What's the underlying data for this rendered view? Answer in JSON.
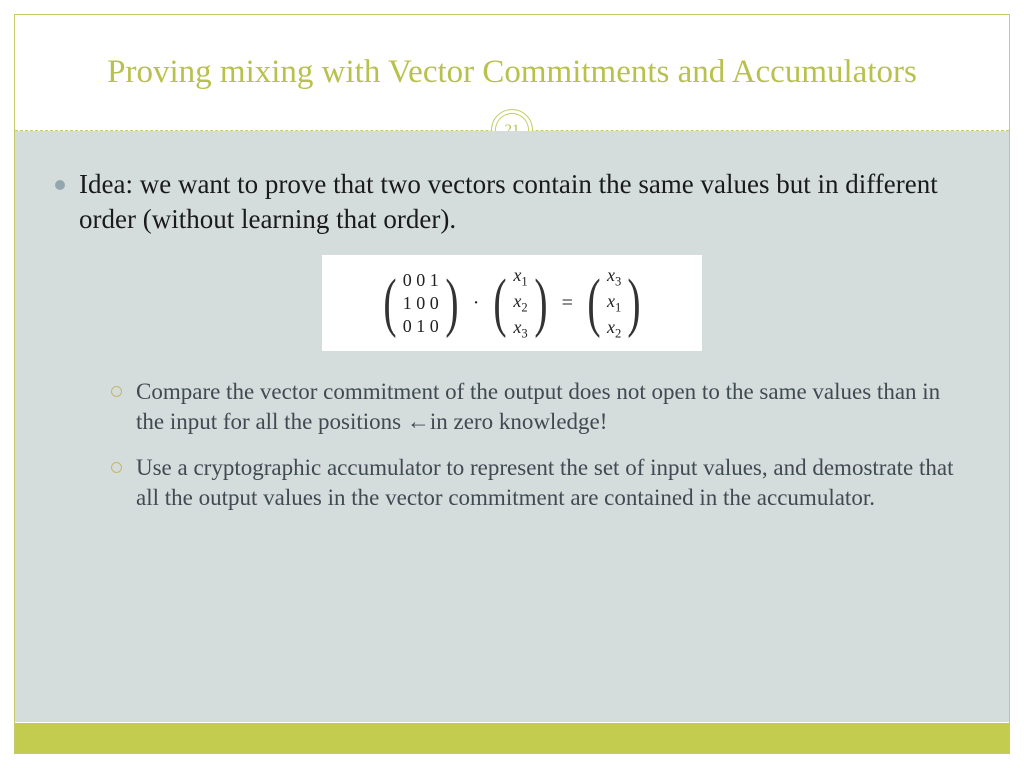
{
  "slide": {
    "title": "Proving mixing with Vector Commitments and Accumulators",
    "page_number": "21",
    "colors": {
      "accent": "#b9c14d",
      "border": "#c4cc6a",
      "body_bg": "#d4dcdc",
      "footer": "#c4cc4f",
      "bullet_dot": "#94a7b0",
      "sub_circle": "#c4b968",
      "sub_text": "#3f4a52"
    },
    "main_bullet": "Idea: we want to prove that two vectors contain the same values but in different order (without learning that order).",
    "equation": {
      "matrix_P": [
        [
          "0",
          "0",
          "1"
        ],
        [
          "1",
          "0",
          "0"
        ],
        [
          "0",
          "1",
          "0"
        ]
      ],
      "vec_in": [
        "x1",
        "x2",
        "x3"
      ],
      "vec_out": [
        "x3",
        "x1",
        "x2"
      ],
      "operator": "·",
      "equals": "="
    },
    "sub_bullets": [
      "Compare the vector commitment of  the output does not open to the same values than in the input for all the positions ←in zero knowledge!",
      "Use a cryptographic accumulator to represent the set of input values, and demostrate that all the output values in the vector commitment are contained in the accumulator."
    ]
  }
}
